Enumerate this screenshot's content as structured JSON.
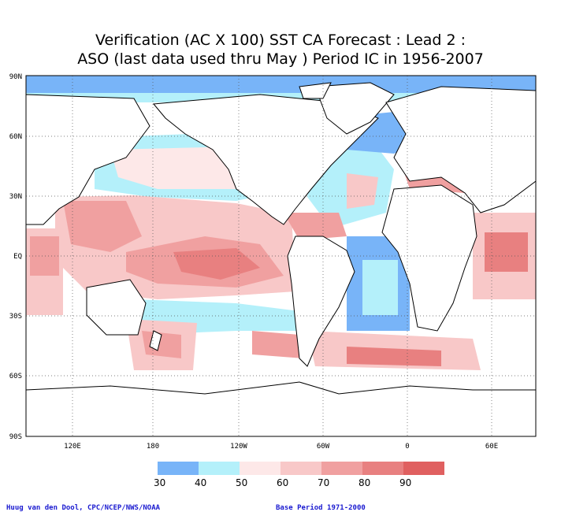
{
  "title": {
    "line1": "Verification (AC X 100) SST CA Forecast : Lead 2 :",
    "line2": "ASO (last data used thru May ) Period IC in 1956-2007"
  },
  "map": {
    "lat_labels": [
      "90N",
      "60N",
      "30N",
      "EQ",
      "30S",
      "60S",
      "90S"
    ],
    "lon_labels": [
      "120E",
      "180",
      "120W",
      "60W",
      "0",
      "60E"
    ],
    "grid": true
  },
  "colorbar": {
    "tick_labels": [
      "30",
      "40",
      "50",
      "60",
      "70",
      "80",
      "90"
    ],
    "colors": [
      "#78b4f8",
      "#b4f0fa",
      "#fde8e8",
      "#f8c8c8",
      "#f0a0a0",
      "#e88080",
      "#e06060"
    ]
  },
  "footer": {
    "credit": "Huug van den Dool, CPC/NCEP/NWS/NOAA",
    "base_period": "Base Period 1971-2000"
  }
}
